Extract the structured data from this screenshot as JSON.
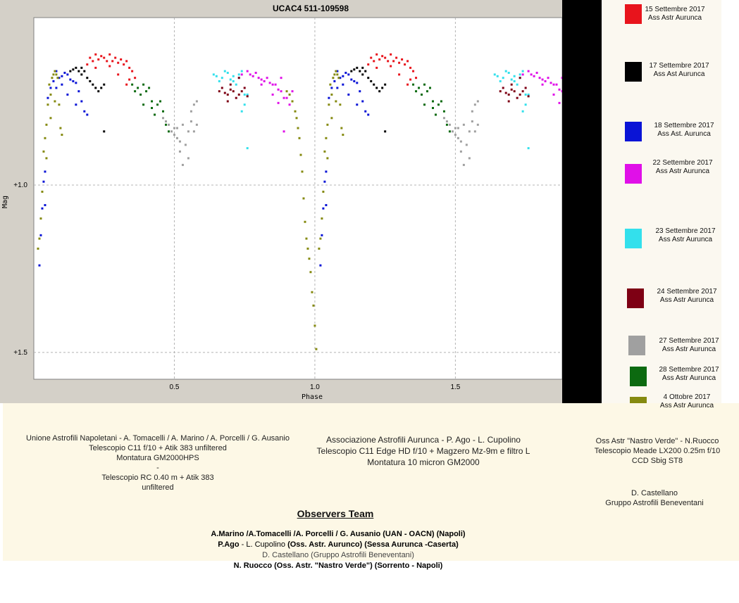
{
  "chart_data": {
    "type": "scatter",
    "title": "UCAC4 511-109598",
    "xlabel": "Phase",
    "ylabel": "Mag",
    "xlim": [
      0.0,
      1.88
    ],
    "ylim": [
      1.58,
      0.5
    ],
    "y_inverted": true,
    "grid": true,
    "x_ticks": [
      {
        "value": 0.5,
        "label": "0.5"
      },
      {
        "value": 1.0,
        "label": "1.0"
      },
      {
        "value": 1.5,
        "label": "1.5"
      }
    ],
    "y_ticks": [
      {
        "value": 1.0,
        "label": "+1.0"
      },
      {
        "value": 1.5,
        "label": "+1.5"
      }
    ],
    "series": [
      {
        "name": "15 Settembre 2017",
        "color": "#e8141c",
        "x": [
          0.19,
          0.2,
          0.21,
          0.22,
          0.23,
          0.24,
          0.25,
          0.26,
          0.27,
          0.28,
          0.29,
          0.3,
          0.31,
          0.32,
          0.33,
          0.34,
          0.35,
          0.36,
          0.22,
          0.27,
          0.3,
          0.34,
          0.33
        ],
        "y": [
          0.64,
          0.62,
          0.63,
          0.61,
          0.625,
          0.615,
          0.62,
          0.63,
          0.61,
          0.63,
          0.62,
          0.635,
          0.625,
          0.64,
          0.63,
          0.65,
          0.66,
          0.68,
          0.65,
          0.645,
          0.67,
          0.685,
          0.7
        ]
      },
      {
        "name": "17 Settembre 2017",
        "color": "#000000",
        "x": [
          0.13,
          0.14,
          0.15,
          0.16,
          0.17,
          0.18,
          0.19,
          0.21,
          0.22,
          0.23,
          0.24,
          0.25,
          0.17,
          0.2,
          0.25
        ],
        "y": [
          0.66,
          0.655,
          0.65,
          0.66,
          0.65,
          0.66,
          0.68,
          0.7,
          0.71,
          0.72,
          0.71,
          0.7,
          0.67,
          0.69,
          0.84
        ]
      },
      {
        "name": "18 Settembre 2017",
        "color": "#0a14d6",
        "x": [
          0.02,
          0.025,
          0.03,
          0.035,
          0.04,
          0.05,
          0.06,
          0.07,
          0.08,
          0.09,
          0.1,
          0.11,
          0.12,
          0.13,
          0.14,
          0.15,
          0.16,
          0.17,
          0.08,
          0.1,
          0.12,
          0.15,
          0.18,
          0.19,
          0.04
        ],
        "y": [
          1.24,
          1.15,
          1.07,
          0.99,
          0.96,
          0.74,
          0.71,
          0.69,
          0.66,
          0.68,
          0.675,
          0.665,
          0.67,
          0.685,
          0.69,
          0.695,
          0.72,
          0.75,
          0.71,
          0.7,
          0.73,
          0.76,
          0.78,
          0.79,
          1.06
        ]
      },
      {
        "name": "22 Settembre 2017",
        "color": "#e010e8",
        "x": [
          0.74,
          0.76,
          0.77,
          0.78,
          0.79,
          0.8,
          0.81,
          0.82,
          0.83,
          0.84,
          0.85,
          0.86,
          0.87,
          0.88,
          0.89,
          0.9,
          0.91,
          0.92,
          0.81,
          0.85,
          0.88,
          0.89,
          0.87
        ],
        "y": [
          0.67,
          0.66,
          0.67,
          0.675,
          0.665,
          0.68,
          0.685,
          0.69,
          0.68,
          0.695,
          0.7,
          0.7,
          0.715,
          0.72,
          0.74,
          0.74,
          0.76,
          0.72,
          0.7,
          0.73,
          0.68,
          0.84,
          0.755
        ]
      },
      {
        "name": "23 Settembre 2017",
        "color": "#33e0ec",
        "x": [
          0.64,
          0.65,
          0.66,
          0.67,
          0.68,
          0.69,
          0.7,
          0.71,
          0.72,
          0.73,
          0.74,
          0.75,
          0.76,
          0.71,
          0.73,
          0.75,
          0.74,
          0.76
        ],
        "y": [
          0.67,
          0.675,
          0.69,
          0.68,
          0.66,
          0.665,
          0.685,
          0.675,
          0.7,
          0.68,
          0.66,
          0.73,
          0.73,
          0.69,
          0.67,
          0.76,
          0.78,
          0.89
        ]
      },
      {
        "name": "24 Settembre 2017",
        "color": "#7e0014",
        "x": [
          0.66,
          0.67,
          0.68,
          0.69,
          0.7,
          0.71,
          0.72,
          0.73,
          0.74,
          0.75,
          0.76,
          0.7,
          0.73,
          0.69
        ],
        "y": [
          0.72,
          0.71,
          0.725,
          0.73,
          0.715,
          0.72,
          0.74,
          0.73,
          0.72,
          0.71,
          0.735,
          0.7,
          0.68,
          0.75
        ]
      },
      {
        "name": "27 Settembre 2017",
        "color": "#a0a0a0",
        "x": [
          0.46,
          0.47,
          0.48,
          0.49,
          0.5,
          0.5,
          0.51,
          0.51,
          0.52,
          0.52,
          0.53,
          0.53,
          0.54,
          0.55,
          0.55,
          0.56,
          0.56,
          0.57,
          0.57,
          0.58,
          0.58
        ],
        "y": [
          0.8,
          0.81,
          0.82,
          0.84,
          0.83,
          0.85,
          0.86,
          0.83,
          0.87,
          0.9,
          0.82,
          0.94,
          0.88,
          0.84,
          0.92,
          0.81,
          0.78,
          0.76,
          0.84,
          0.82,
          0.75
        ]
      },
      {
        "name": "28 Settembre 2017",
        "color": "#0c6a10",
        "x": [
          0.35,
          0.36,
          0.37,
          0.38,
          0.39,
          0.4,
          0.41,
          0.42,
          0.43,
          0.44,
          0.45,
          0.46,
          0.47,
          0.48,
          0.39,
          0.42
        ],
        "y": [
          0.7,
          0.72,
          0.71,
          0.73,
          0.76,
          0.72,
          0.71,
          0.77,
          0.79,
          0.76,
          0.75,
          0.78,
          0.82,
          0.84,
          0.7,
          0.75
        ]
      },
      {
        "name": "4 Ottobre 2017",
        "color": "#858a10",
        "x": [
          0.015,
          0.02,
          0.025,
          0.03,
          0.035,
          0.04,
          0.045,
          0.05,
          0.055,
          0.06,
          0.065,
          0.07,
          0.075,
          0.08,
          0.085,
          0.09,
          0.095,
          0.1,
          0.045,
          0.06,
          0.075,
          0.9,
          0.91,
          0.92,
          0.93,
          0.935,
          0.94,
          0.945,
          0.95,
          0.955,
          0.96,
          0.965,
          0.97,
          0.975,
          0.98,
          0.985,
          0.99,
          0.995,
          1.0,
          1.005
        ],
        "y": [
          1.19,
          1.16,
          1.1,
          1.02,
          0.9,
          0.86,
          0.82,
          0.76,
          0.7,
          0.73,
          0.68,
          0.67,
          0.66,
          0.67,
          0.68,
          0.76,
          0.83,
          0.85,
          0.92,
          0.8,
          0.75,
          0.72,
          0.73,
          0.75,
          0.78,
          0.8,
          0.83,
          0.86,
          0.91,
          0.96,
          1.04,
          1.11,
          1.16,
          1.19,
          1.22,
          1.26,
          1.32,
          1.36,
          1.42,
          1.49
        ]
      }
    ]
  }
}
